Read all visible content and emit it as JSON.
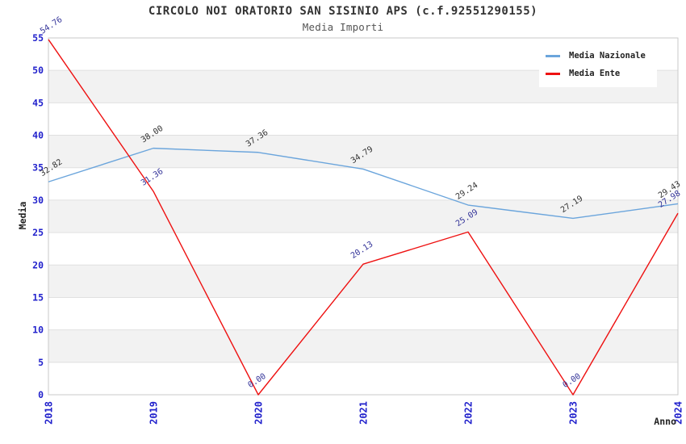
{
  "chart_data": {
    "type": "line",
    "title": "CIRCOLO NOI ORATORIO SAN SISINIO APS (c.f.92551290155)",
    "subtitle": "Media Importi",
    "x": [
      "2018",
      "2019",
      "2020",
      "2021",
      "2022",
      "2023",
      "2024"
    ],
    "series": [
      {
        "name": "Media Nazionale",
        "color": "#6BA5DC",
        "label_color": "#333333",
        "values": [
          32.82,
          38.0,
          37.36,
          34.79,
          29.24,
          27.19,
          29.43
        ]
      },
      {
        "name": "Media Ente",
        "color": "#EE1111",
        "label_color": "#333399",
        "values": [
          54.76,
          31.36,
          0.0,
          20.13,
          25.09,
          0.0,
          27.98
        ]
      }
    ],
    "xlabel": "Anno",
    "ylabel": "Media",
    "ylim": [
      0,
      55
    ],
    "yticks": [
      0,
      5,
      10,
      15,
      20,
      25,
      30,
      35,
      40,
      45,
      50,
      55
    ],
    "grid": true,
    "band_color": "#F2F2F2",
    "grid_line_color": "#E0E0E0",
    "plot_border_color": "#C9C9C9",
    "tick_label_color": "#2222CC",
    "legend_position": "top-right"
  }
}
